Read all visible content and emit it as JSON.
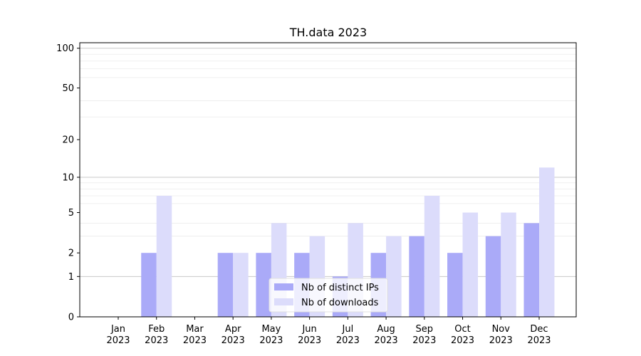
{
  "chart_data": {
    "type": "bar",
    "title": "TH.data 2023",
    "xlabel": "",
    "ylabel": "",
    "y_scale": "log(1+y)",
    "ylim": [
      0,
      110
    ],
    "y_ticks": [
      0,
      1,
      2,
      5,
      10,
      20,
      50,
      100
    ],
    "grid": true,
    "legend_position": "bottom-center",
    "categories": [
      "Jan\n2023",
      "Feb\n2023",
      "Mar\n2023",
      "Apr\n2023",
      "May\n2023",
      "Jun\n2023",
      "Jul\n2023",
      "Aug\n2023",
      "Sep\n2023",
      "Oct\n2023",
      "Nov\n2023",
      "Dec\n2023"
    ],
    "series": [
      {
        "name": "Nb of distinct IPs",
        "color": "#aaaaf8",
        "values": [
          0,
          2,
          0,
          2,
          2,
          2,
          1,
          2,
          3,
          2,
          3,
          4
        ]
      },
      {
        "name": "Nb of downloads",
        "color": "#dcdcfb",
        "values": [
          0,
          7,
          0,
          2,
          4,
          3,
          4,
          3,
          7,
          5,
          5,
          12
        ]
      }
    ]
  }
}
